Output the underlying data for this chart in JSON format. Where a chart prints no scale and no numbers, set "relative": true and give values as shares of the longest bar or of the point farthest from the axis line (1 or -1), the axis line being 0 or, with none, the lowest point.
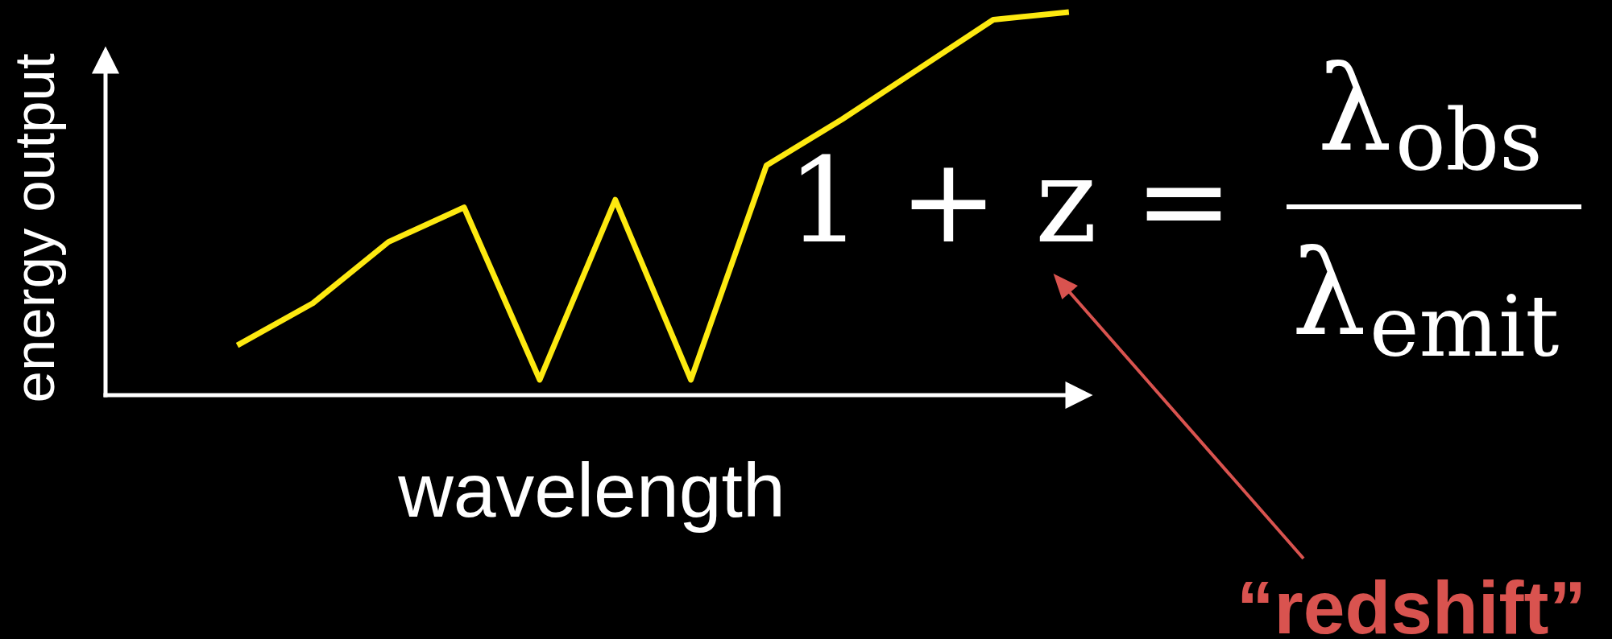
{
  "chart_data": {
    "type": "line",
    "xlabel": "wavelength",
    "ylabel": "energy output",
    "relative": true,
    "categories": [
      null,
      null,
      null,
      null,
      null,
      null,
      null,
      null,
      null,
      null,
      null,
      null
    ],
    "values": [
      0.13,
      0.24,
      0.4,
      0.49,
      0.04,
      0.51,
      0.04,
      0.6,
      0.72,
      0.85,
      0.98,
      1
    ],
    "color": "#fde910",
    "annotations": [
      "1 + z =",
      "λ$_{obs}$",
      "λ$_{emit}$",
      "“redshift”"
    ]
  }
}
